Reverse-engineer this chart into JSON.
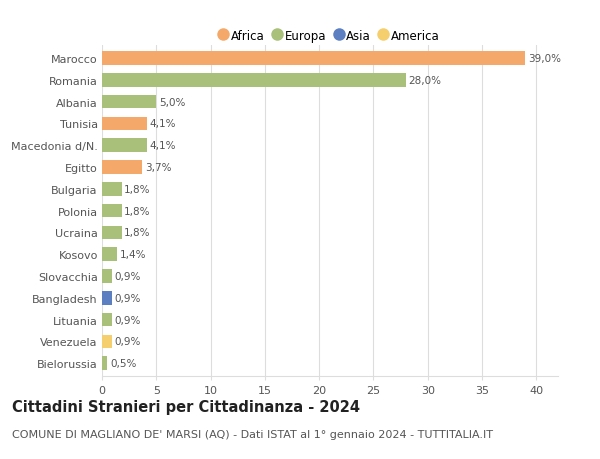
{
  "categories": [
    "Marocco",
    "Romania",
    "Albania",
    "Tunisia",
    "Macedonia d/N.",
    "Egitto",
    "Bulgaria",
    "Polonia",
    "Ucraina",
    "Kosovo",
    "Slovacchia",
    "Bangladesh",
    "Lituania",
    "Venezuela",
    "Bielorussia"
  ],
  "values": [
    39.0,
    28.0,
    5.0,
    4.1,
    4.1,
    3.7,
    1.8,
    1.8,
    1.8,
    1.4,
    0.9,
    0.9,
    0.9,
    0.9,
    0.5
  ],
  "labels": [
    "39,0%",
    "28,0%",
    "5,0%",
    "4,1%",
    "4,1%",
    "3,7%",
    "1,8%",
    "1,8%",
    "1,8%",
    "1,4%",
    "0,9%",
    "0,9%",
    "0,9%",
    "0,9%",
    "0,5%"
  ],
  "colors": [
    "#F4A96A",
    "#A8C07A",
    "#A8C07A",
    "#F4A96A",
    "#A8C07A",
    "#F4A96A",
    "#A8C07A",
    "#A8C07A",
    "#A8C07A",
    "#A8C07A",
    "#A8C07A",
    "#5B7FC1",
    "#A8C07A",
    "#F5CF6E",
    "#A8C07A"
  ],
  "legend_labels": [
    "Africa",
    "Europa",
    "Asia",
    "America"
  ],
  "legend_colors": [
    "#F4A96A",
    "#A8C07A",
    "#5B7FC1",
    "#F5CF6E"
  ],
  "title": "Cittadini Stranieri per Cittadinanza - 2024",
  "subtitle": "COMUNE DI MAGLIANO DE' MARSI (AQ) - Dati ISTAT al 1° gennaio 2024 - TUTTITALIA.IT",
  "xlim": [
    0,
    42
  ],
  "xticks": [
    0,
    5,
    10,
    15,
    20,
    25,
    30,
    35,
    40
  ],
  "background_color": "#ffffff",
  "grid_color": "#dddddd",
  "bar_height": 0.62,
  "title_fontsize": 10.5,
  "subtitle_fontsize": 8,
  "label_fontsize": 7.5,
  "tick_fontsize": 8,
  "legend_fontsize": 8.5
}
